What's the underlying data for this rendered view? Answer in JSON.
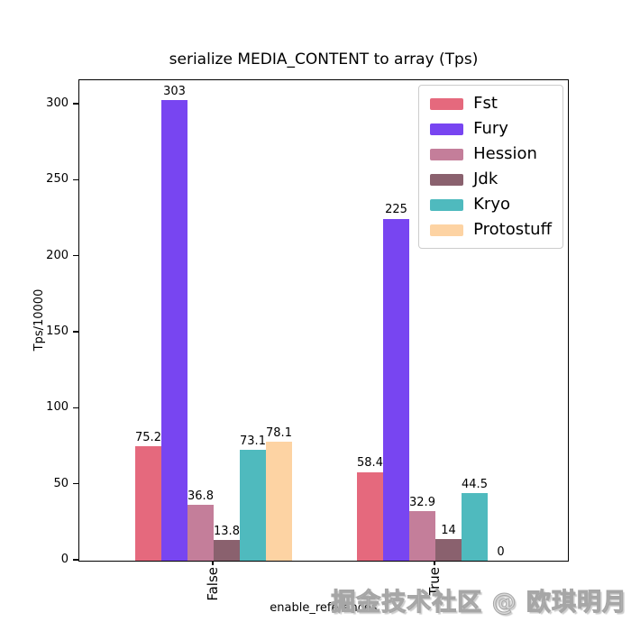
{
  "chart_data": {
    "type": "bar",
    "title": "serialize MEDIA_CONTENT to array (Tps)",
    "xlabel": "enable_references",
    "ylabel": "Tps/10000",
    "categories": [
      "False",
      "True"
    ],
    "series": [
      {
        "name": "Fst",
        "color": "#e5697d",
        "values": [
          75.2,
          58.4
        ],
        "labels": [
          "75.2",
          "58.4"
        ]
      },
      {
        "name": "Fury",
        "color": "#7845f1",
        "values": [
          303,
          225
        ],
        "labels": [
          "303",
          "225"
        ]
      },
      {
        "name": "Hession",
        "color": "#c47e9a",
        "values": [
          36.8,
          32.9
        ],
        "labels": [
          "36.8",
          "32.9"
        ]
      },
      {
        "name": "Jdk",
        "color": "#8a616e",
        "values": [
          13.8,
          14
        ],
        "labels": [
          "13.8",
          "14"
        ]
      },
      {
        "name": "Kryo",
        "color": "#4fbabe",
        "values": [
          73.1,
          44.5
        ],
        "labels": [
          "73.1",
          "44.5"
        ]
      },
      {
        "name": "Protostuff",
        "color": "#fdd3a3",
        "values": [
          78.1,
          0
        ],
        "labels": [
          "78.1",
          "0"
        ]
      }
    ],
    "yticks": [
      0,
      50,
      100,
      150,
      200,
      250,
      300
    ],
    "ylim": [
      0,
      316
    ],
    "grid": false,
    "legend_position": "upper right",
    "axis_color": "#000000",
    "legend_border_color": "#cccccc"
  },
  "watermark": {
    "text": "掘金技术社区 @ 欧琪明月"
  }
}
